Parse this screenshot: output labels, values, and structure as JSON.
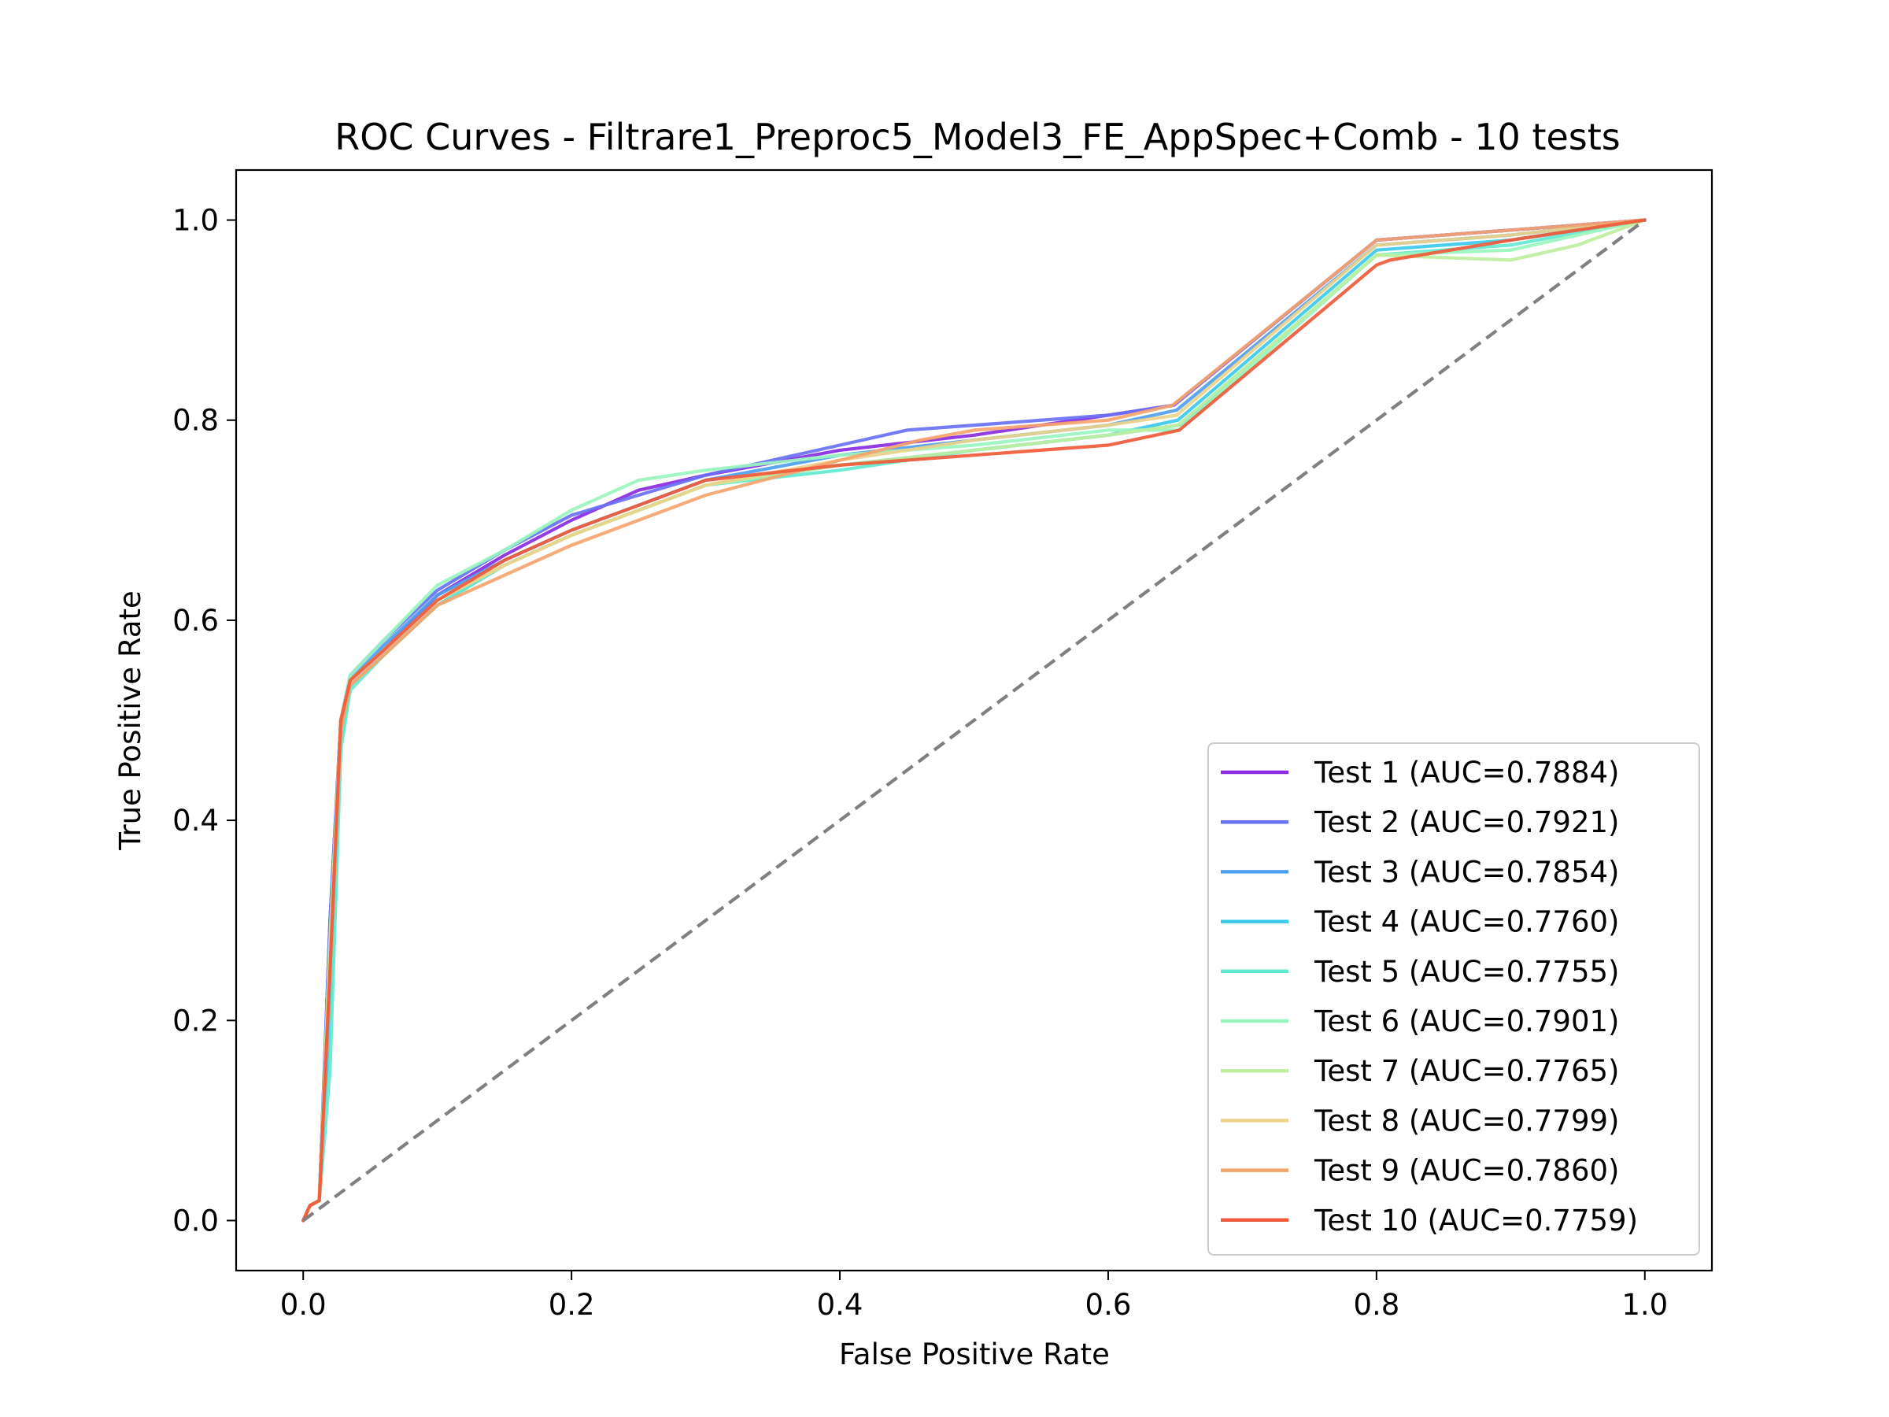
{
  "chart_data": {
    "type": "line",
    "title": "ROC Curves - Filtrare1_Preproc5_Model3_FE_AppSpec+Comb - 10 tests",
    "xlabel": "False Positive Rate",
    "ylabel": "True Positive Rate",
    "xlim": [
      -0.05,
      1.05
    ],
    "ylim": [
      -0.05,
      1.05
    ],
    "xticks": [
      "0.0",
      "0.2",
      "0.4",
      "0.6",
      "0.8",
      "1.0"
    ],
    "yticks": [
      "0.0",
      "0.2",
      "0.4",
      "0.6",
      "0.8",
      "1.0"
    ],
    "grid": false,
    "legend_position": "lower-right",
    "diagonal": {
      "x": [
        0,
        1
      ],
      "y": [
        0,
        1
      ],
      "color": "#808080",
      "style": "dashed"
    },
    "series": [
      {
        "name": "Test 1 (AUC=0.7884)",
        "color": "#8a2be2",
        "x": [
          0,
          0.005,
          0.012,
          0.02,
          0.028,
          0.035,
          0.06,
          0.1,
          0.15,
          0.2,
          0.25,
          0.3,
          0.4,
          0.5,
          0.6,
          0.649,
          0.8,
          0.9,
          1.0
        ],
        "y": [
          0,
          0.015,
          0.02,
          0.3,
          0.5,
          0.54,
          0.57,
          0.625,
          0.665,
          0.7,
          0.73,
          0.745,
          0.77,
          0.785,
          0.805,
          0.815,
          0.98,
          0.99,
          1.0
        ]
      },
      {
        "name": "Test 2 (AUC=0.7921)",
        "color": "#6a70f5",
        "x": [
          0,
          0.005,
          0.012,
          0.02,
          0.028,
          0.035,
          0.06,
          0.1,
          0.15,
          0.2,
          0.25,
          0.3,
          0.4,
          0.45,
          0.5,
          0.6,
          0.649,
          0.8,
          0.9,
          1.0
        ],
        "y": [
          0,
          0.015,
          0.02,
          0.3,
          0.5,
          0.545,
          0.58,
          0.63,
          0.67,
          0.705,
          0.725,
          0.745,
          0.775,
          0.79,
          0.795,
          0.805,
          0.815,
          0.98,
          0.99,
          1.0
        ]
      },
      {
        "name": "Test 3 (AUC=0.7854)",
        "color": "#4ea0ee",
        "x": [
          0,
          0.005,
          0.012,
          0.02,
          0.028,
          0.035,
          0.06,
          0.1,
          0.15,
          0.2,
          0.25,
          0.3,
          0.4,
          0.5,
          0.6,
          0.651,
          0.8,
          0.9,
          1.0
        ],
        "y": [
          0,
          0.015,
          0.02,
          0.29,
          0.5,
          0.54,
          0.575,
          0.625,
          0.66,
          0.69,
          0.715,
          0.74,
          0.765,
          0.78,
          0.795,
          0.81,
          0.975,
          0.985,
          1.0
        ]
      },
      {
        "name": "Test 4 (AUC=0.7760)",
        "color": "#3cc9ec",
        "x": [
          0,
          0.005,
          0.012,
          0.02,
          0.028,
          0.035,
          0.06,
          0.1,
          0.15,
          0.2,
          0.25,
          0.3,
          0.4,
          0.5,
          0.6,
          0.652,
          0.8,
          0.9,
          1.0
        ],
        "y": [
          0,
          0.015,
          0.02,
          0.2,
          0.48,
          0.535,
          0.565,
          0.615,
          0.655,
          0.685,
          0.71,
          0.735,
          0.755,
          0.77,
          0.785,
          0.8,
          0.97,
          0.98,
          1.0
        ]
      },
      {
        "name": "Test 5 (AUC=0.7755)",
        "color": "#62e9d0",
        "x": [
          0,
          0.005,
          0.012,
          0.02,
          0.028,
          0.035,
          0.06,
          0.1,
          0.15,
          0.2,
          0.25,
          0.3,
          0.4,
          0.5,
          0.6,
          0.653,
          0.8,
          0.9,
          1.0
        ],
        "y": [
          0,
          0.015,
          0.02,
          0.15,
          0.47,
          0.53,
          0.565,
          0.615,
          0.655,
          0.685,
          0.71,
          0.735,
          0.75,
          0.77,
          0.785,
          0.795,
          0.965,
          0.975,
          1.0
        ]
      },
      {
        "name": "Test 6 (AUC=0.7901)",
        "color": "#99f5bf",
        "x": [
          0,
          0.005,
          0.012,
          0.02,
          0.028,
          0.035,
          0.06,
          0.1,
          0.15,
          0.2,
          0.25,
          0.3,
          0.4,
          0.5,
          0.6,
          0.653,
          0.8,
          0.9,
          1.0
        ],
        "y": [
          0,
          0.015,
          0.02,
          0.28,
          0.5,
          0.545,
          0.58,
          0.635,
          0.67,
          0.71,
          0.74,
          0.75,
          0.765,
          0.775,
          0.79,
          0.79,
          0.965,
          0.97,
          1.0
        ]
      },
      {
        "name": "Test 7 (AUC=0.7765)",
        "color": "#bfeea0",
        "x": [
          0,
          0.005,
          0.012,
          0.02,
          0.028,
          0.035,
          0.06,
          0.1,
          0.15,
          0.2,
          0.25,
          0.3,
          0.4,
          0.5,
          0.6,
          0.652,
          0.8,
          0.9,
          0.95,
          1.0
        ],
        "y": [
          0,
          0.015,
          0.02,
          0.27,
          0.5,
          0.54,
          0.57,
          0.62,
          0.655,
          0.685,
          0.71,
          0.735,
          0.755,
          0.77,
          0.785,
          0.795,
          0.965,
          0.96,
          0.975,
          1.0
        ]
      },
      {
        "name": "Test 8 (AUC=0.7799)",
        "color": "#ebd38a",
        "x": [
          0,
          0.005,
          0.012,
          0.02,
          0.028,
          0.035,
          0.06,
          0.1,
          0.15,
          0.2,
          0.25,
          0.3,
          0.4,
          0.5,
          0.6,
          0.651,
          0.8,
          0.9,
          1.0
        ],
        "y": [
          0,
          0.015,
          0.02,
          0.27,
          0.5,
          0.54,
          0.57,
          0.62,
          0.655,
          0.685,
          0.71,
          0.735,
          0.76,
          0.78,
          0.795,
          0.805,
          0.975,
          0.985,
          1.0
        ]
      },
      {
        "name": "Test 9 (AUC=0.7860)",
        "color": "#f5a46c",
        "x": [
          0,
          0.005,
          0.012,
          0.02,
          0.028,
          0.035,
          0.06,
          0.1,
          0.15,
          0.2,
          0.25,
          0.3,
          0.4,
          0.46,
          0.5,
          0.6,
          0.648,
          0.8,
          0.9,
          1.0
        ],
        "y": [
          0,
          0.015,
          0.02,
          0.25,
          0.49,
          0.535,
          0.565,
          0.615,
          0.645,
          0.675,
          0.7,
          0.725,
          0.76,
          0.78,
          0.79,
          0.8,
          0.815,
          0.98,
          0.99,
          1.0
        ]
      },
      {
        "name": "Test 10 (AUC=0.7759)",
        "color": "#f05a3a",
        "x": [
          0,
          0.005,
          0.012,
          0.02,
          0.028,
          0.035,
          0.06,
          0.1,
          0.15,
          0.2,
          0.25,
          0.3,
          0.4,
          0.5,
          0.6,
          0.653,
          0.8,
          0.81,
          0.9,
          1.0
        ],
        "y": [
          0,
          0.015,
          0.02,
          0.25,
          0.5,
          0.54,
          0.57,
          0.62,
          0.66,
          0.69,
          0.715,
          0.74,
          0.755,
          0.765,
          0.775,
          0.79,
          0.955,
          0.96,
          0.98,
          1.0
        ]
      }
    ]
  }
}
